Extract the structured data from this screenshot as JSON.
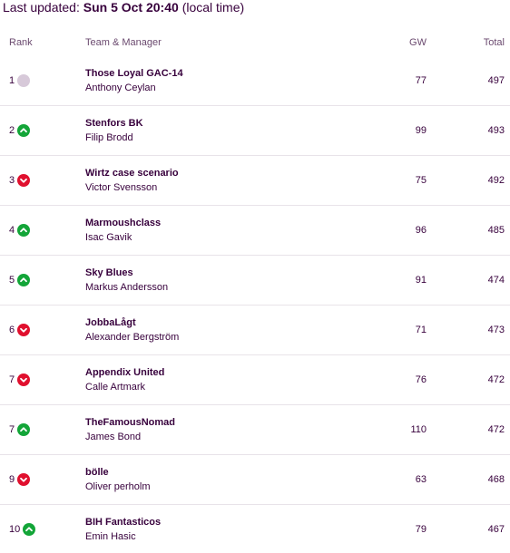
{
  "last_updated": {
    "label": "Last updated:",
    "value": "Sun 5 Oct 20:40",
    "suffix": "(local time)"
  },
  "columns": {
    "rank": "Rank",
    "team": "Team & Manager",
    "gw": "GW",
    "total": "Total"
  },
  "rows": [
    {
      "rank": "1",
      "movement": "same",
      "team": "Those Loyal GAC-14",
      "manager": "Anthony Ceylan",
      "gw": "77",
      "total": "497"
    },
    {
      "rank": "2",
      "movement": "up",
      "team": "Stenfors BK",
      "manager": "Filip Brodd",
      "gw": "99",
      "total": "493"
    },
    {
      "rank": "3",
      "movement": "down",
      "team": "Wirtz case scenario",
      "manager": "Victor Svensson",
      "gw": "75",
      "total": "492"
    },
    {
      "rank": "4",
      "movement": "up",
      "team": "Marmoushclass",
      "manager": "Isac Gavik",
      "gw": "96",
      "total": "485"
    },
    {
      "rank": "5",
      "movement": "up",
      "team": "Sky Blues",
      "manager": "Markus Andersson",
      "gw": "91",
      "total": "474"
    },
    {
      "rank": "6",
      "movement": "down",
      "team": "JobbaLågt",
      "manager": "Alexander Bergström",
      "gw": "71",
      "total": "473"
    },
    {
      "rank": "7",
      "movement": "down",
      "team": "Appendix United",
      "manager": "Calle Artmark",
      "gw": "76",
      "total": "472"
    },
    {
      "rank": "7",
      "movement": "up",
      "team": "TheFamousNomad",
      "manager": "James Bond",
      "gw": "110",
      "total": "472"
    },
    {
      "rank": "9",
      "movement": "down",
      "team": "bölle",
      "manager": "Oliver perholm",
      "gw": "63",
      "total": "468"
    },
    {
      "rank": "10",
      "movement": "up",
      "team": "BIH Fantasticos",
      "manager": "Emin Hasic",
      "gw": "79",
      "total": "467"
    }
  ],
  "colors": {
    "up": "#13a538",
    "down": "#e0102e",
    "same": "#d7c9d9",
    "text": "#37003c"
  }
}
